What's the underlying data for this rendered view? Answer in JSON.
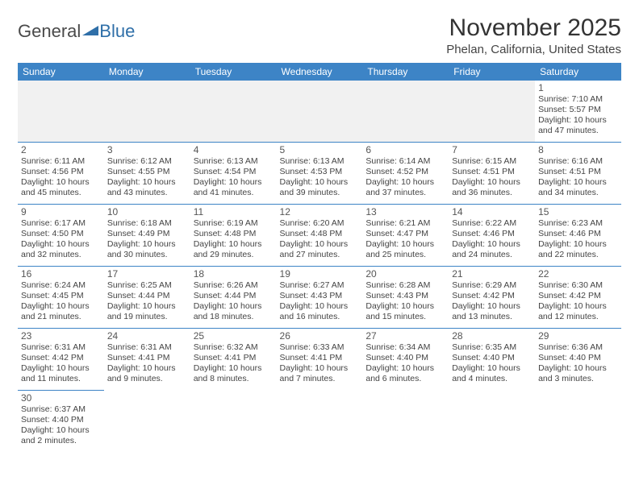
{
  "brand": {
    "part1": "General",
    "part2": "Blue",
    "color_gray": "#4a4a4a",
    "color_blue": "#2f6fa8",
    "triangle_color": "#2f6fa8"
  },
  "title": {
    "month_year": "November 2025",
    "location": "Phelan, California, United States"
  },
  "header_row": {
    "bg": "#3d84c6",
    "fg": "#ffffff",
    "days": [
      "Sunday",
      "Monday",
      "Tuesday",
      "Wednesday",
      "Thursday",
      "Friday",
      "Saturday"
    ]
  },
  "cell_border_color": "#3d84c6",
  "grid": [
    [
      null,
      null,
      null,
      null,
      null,
      null,
      {
        "n": "1",
        "sr": "Sunrise: 7:10 AM",
        "ss": "Sunset: 5:57 PM",
        "d1": "Daylight: 10 hours",
        "d2": "and 47 minutes."
      }
    ],
    [
      {
        "n": "2",
        "sr": "Sunrise: 6:11 AM",
        "ss": "Sunset: 4:56 PM",
        "d1": "Daylight: 10 hours",
        "d2": "and 45 minutes."
      },
      {
        "n": "3",
        "sr": "Sunrise: 6:12 AM",
        "ss": "Sunset: 4:55 PM",
        "d1": "Daylight: 10 hours",
        "d2": "and 43 minutes."
      },
      {
        "n": "4",
        "sr": "Sunrise: 6:13 AM",
        "ss": "Sunset: 4:54 PM",
        "d1": "Daylight: 10 hours",
        "d2": "and 41 minutes."
      },
      {
        "n": "5",
        "sr": "Sunrise: 6:13 AM",
        "ss": "Sunset: 4:53 PM",
        "d1": "Daylight: 10 hours",
        "d2": "and 39 minutes."
      },
      {
        "n": "6",
        "sr": "Sunrise: 6:14 AM",
        "ss": "Sunset: 4:52 PM",
        "d1": "Daylight: 10 hours",
        "d2": "and 37 minutes."
      },
      {
        "n": "7",
        "sr": "Sunrise: 6:15 AM",
        "ss": "Sunset: 4:51 PM",
        "d1": "Daylight: 10 hours",
        "d2": "and 36 minutes."
      },
      {
        "n": "8",
        "sr": "Sunrise: 6:16 AM",
        "ss": "Sunset: 4:51 PM",
        "d1": "Daylight: 10 hours",
        "d2": "and 34 minutes."
      }
    ],
    [
      {
        "n": "9",
        "sr": "Sunrise: 6:17 AM",
        "ss": "Sunset: 4:50 PM",
        "d1": "Daylight: 10 hours",
        "d2": "and 32 minutes."
      },
      {
        "n": "10",
        "sr": "Sunrise: 6:18 AM",
        "ss": "Sunset: 4:49 PM",
        "d1": "Daylight: 10 hours",
        "d2": "and 30 minutes."
      },
      {
        "n": "11",
        "sr": "Sunrise: 6:19 AM",
        "ss": "Sunset: 4:48 PM",
        "d1": "Daylight: 10 hours",
        "d2": "and 29 minutes."
      },
      {
        "n": "12",
        "sr": "Sunrise: 6:20 AM",
        "ss": "Sunset: 4:48 PM",
        "d1": "Daylight: 10 hours",
        "d2": "and 27 minutes."
      },
      {
        "n": "13",
        "sr": "Sunrise: 6:21 AM",
        "ss": "Sunset: 4:47 PM",
        "d1": "Daylight: 10 hours",
        "d2": "and 25 minutes."
      },
      {
        "n": "14",
        "sr": "Sunrise: 6:22 AM",
        "ss": "Sunset: 4:46 PM",
        "d1": "Daylight: 10 hours",
        "d2": "and 24 minutes."
      },
      {
        "n": "15",
        "sr": "Sunrise: 6:23 AM",
        "ss": "Sunset: 4:46 PM",
        "d1": "Daylight: 10 hours",
        "d2": "and 22 minutes."
      }
    ],
    [
      {
        "n": "16",
        "sr": "Sunrise: 6:24 AM",
        "ss": "Sunset: 4:45 PM",
        "d1": "Daylight: 10 hours",
        "d2": "and 21 minutes."
      },
      {
        "n": "17",
        "sr": "Sunrise: 6:25 AM",
        "ss": "Sunset: 4:44 PM",
        "d1": "Daylight: 10 hours",
        "d2": "and 19 minutes."
      },
      {
        "n": "18",
        "sr": "Sunrise: 6:26 AM",
        "ss": "Sunset: 4:44 PM",
        "d1": "Daylight: 10 hours",
        "d2": "and 18 minutes."
      },
      {
        "n": "19",
        "sr": "Sunrise: 6:27 AM",
        "ss": "Sunset: 4:43 PM",
        "d1": "Daylight: 10 hours",
        "d2": "and 16 minutes."
      },
      {
        "n": "20",
        "sr": "Sunrise: 6:28 AM",
        "ss": "Sunset: 4:43 PM",
        "d1": "Daylight: 10 hours",
        "d2": "and 15 minutes."
      },
      {
        "n": "21",
        "sr": "Sunrise: 6:29 AM",
        "ss": "Sunset: 4:42 PM",
        "d1": "Daylight: 10 hours",
        "d2": "and 13 minutes."
      },
      {
        "n": "22",
        "sr": "Sunrise: 6:30 AM",
        "ss": "Sunset: 4:42 PM",
        "d1": "Daylight: 10 hours",
        "d2": "and 12 minutes."
      }
    ],
    [
      {
        "n": "23",
        "sr": "Sunrise: 6:31 AM",
        "ss": "Sunset: 4:42 PM",
        "d1": "Daylight: 10 hours",
        "d2": "and 11 minutes."
      },
      {
        "n": "24",
        "sr": "Sunrise: 6:31 AM",
        "ss": "Sunset: 4:41 PM",
        "d1": "Daylight: 10 hours",
        "d2": "and 9 minutes."
      },
      {
        "n": "25",
        "sr": "Sunrise: 6:32 AM",
        "ss": "Sunset: 4:41 PM",
        "d1": "Daylight: 10 hours",
        "d2": "and 8 minutes."
      },
      {
        "n": "26",
        "sr": "Sunrise: 6:33 AM",
        "ss": "Sunset: 4:41 PM",
        "d1": "Daylight: 10 hours",
        "d2": "and 7 minutes."
      },
      {
        "n": "27",
        "sr": "Sunrise: 6:34 AM",
        "ss": "Sunset: 4:40 PM",
        "d1": "Daylight: 10 hours",
        "d2": "and 6 minutes."
      },
      {
        "n": "28",
        "sr": "Sunrise: 6:35 AM",
        "ss": "Sunset: 4:40 PM",
        "d1": "Daylight: 10 hours",
        "d2": "and 4 minutes."
      },
      {
        "n": "29",
        "sr": "Sunrise: 6:36 AM",
        "ss": "Sunset: 4:40 PM",
        "d1": "Daylight: 10 hours",
        "d2": "and 3 minutes."
      }
    ],
    [
      {
        "n": "30",
        "sr": "Sunrise: 6:37 AM",
        "ss": "Sunset: 4:40 PM",
        "d1": "Daylight: 10 hours",
        "d2": "and 2 minutes."
      },
      null,
      null,
      null,
      null,
      null,
      null
    ]
  ]
}
